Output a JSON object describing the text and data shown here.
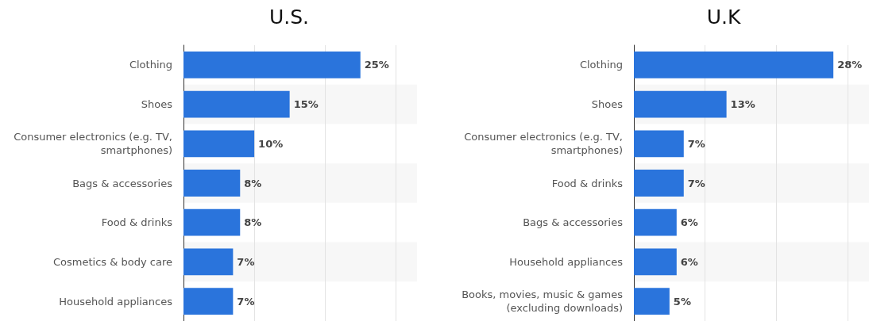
{
  "chart_data": [
    {
      "type": "bar",
      "orientation": "horizontal",
      "title": "U.S.",
      "categories": [
        "Clothing",
        "Shoes",
        "Consumer electronics (e.g. TV,\nsmartphones)",
        "Bags & accessories",
        "Food & drinks",
        "Cosmetics & body care",
        "Household appliances"
      ],
      "values": [
        25,
        15,
        10,
        8,
        8,
        7,
        7
      ],
      "value_labels": [
        "25%",
        "15%",
        "10%",
        "8%",
        "8%",
        "7%",
        "7%"
      ],
      "color": "#2a74dc",
      "xlim": [
        0,
        33
      ],
      "xticks": [
        {
          "value": 0,
          "label": null
        },
        {
          "value": 10,
          "label": null
        },
        {
          "value": 20,
          "label": null
        },
        {
          "value": 30,
          "label": null
        }
      ],
      "grid": "x",
      "tick_labels": "y"
    },
    {
      "type": "bar",
      "orientation": "horizontal",
      "title": "U.K",
      "categories": [
        "Clothing",
        "Shoes",
        "Consumer electronics (e.g. TV,\nsmartphones)",
        "Food & drinks",
        "Bags & accessories",
        "Household appliances",
        "Books, movies, music & games\n(excluding downloads)"
      ],
      "values": [
        28,
        13,
        7,
        7,
        6,
        6,
        5
      ],
      "value_labels": [
        "28%",
        "13%",
        "7%",
        "7%",
        "6%",
        "6%",
        "5%"
      ],
      "color": "#2a74dc",
      "xlim": [
        0,
        33
      ],
      "xticks": [
        {
          "value": 0,
          "label": null
        },
        {
          "value": 10,
          "label": null
        },
        {
          "value": 20,
          "label": null
        },
        {
          "value": 30,
          "label": null
        }
      ],
      "grid": "x",
      "tick_labels": "y"
    }
  ]
}
